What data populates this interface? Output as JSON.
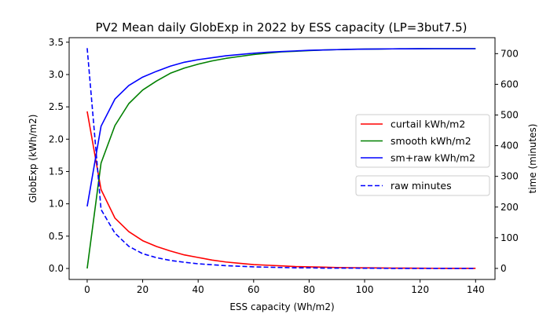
{
  "chart_data": {
    "type": "line",
    "title": "PV2 Mean daily GlobExp in 2022 by ESS capacity (LP=3but7.5)",
    "xlabel": "ESS capacity (Wh/m2)",
    "ylabel": "GlobExp (kWh/m2)",
    "y2label": "time (minutes)",
    "xlim": [
      -6.5,
      147
    ],
    "ylim": [
      -0.17,
      3.57
    ],
    "y2lim": [
      -36,
      752
    ],
    "xticks": [
      0,
      20,
      40,
      60,
      80,
      100,
      120,
      140
    ],
    "yticks": [
      0.0,
      0.5,
      1.0,
      1.5,
      2.0,
      2.5,
      3.0,
      3.5
    ],
    "ytick_labels": [
      "0.0",
      "0.5",
      "1.0",
      "1.5",
      "2.0",
      "2.5",
      "3.0",
      "3.5"
    ],
    "y2ticks": [
      0,
      100,
      200,
      300,
      400,
      500,
      600,
      700
    ],
    "x": [
      0,
      5,
      10,
      15,
      20,
      25,
      30,
      35,
      40,
      45,
      50,
      55,
      60,
      65,
      70,
      75,
      80,
      85,
      90,
      95,
      100,
      105,
      110,
      115,
      120,
      125,
      130,
      135,
      140
    ],
    "series": [
      {
        "name": "curtail kWh/m2",
        "axis": "left",
        "color": "#ff0000",
        "dash": "solid",
        "values": [
          2.43,
          1.22,
          0.78,
          0.57,
          0.43,
          0.34,
          0.27,
          0.21,
          0.17,
          0.13,
          0.1,
          0.08,
          0.06,
          0.05,
          0.04,
          0.03,
          0.025,
          0.02,
          0.015,
          0.012,
          0.01,
          0.008,
          0.006,
          0.005,
          0.004,
          0.003,
          0.002,
          0.002,
          0.002
        ]
      },
      {
        "name": "smooth kWh/m2",
        "axis": "left",
        "color": "#008000",
        "dash": "solid",
        "values": [
          0.0,
          1.63,
          2.21,
          2.55,
          2.76,
          2.9,
          3.02,
          3.1,
          3.16,
          3.21,
          3.25,
          3.28,
          3.31,
          3.33,
          3.35,
          3.36,
          3.37,
          3.38,
          3.385,
          3.39,
          3.393,
          3.395,
          3.397,
          3.398,
          3.399,
          3.4,
          3.4,
          3.4,
          3.4
        ]
      },
      {
        "name": "sm+raw kWh/m2",
        "axis": "left",
        "color": "#0000ff",
        "dash": "solid",
        "values": [
          0.96,
          2.2,
          2.62,
          2.83,
          2.96,
          3.05,
          3.13,
          3.19,
          3.23,
          3.26,
          3.29,
          3.31,
          3.33,
          3.345,
          3.355,
          3.365,
          3.375,
          3.38,
          3.385,
          3.39,
          3.393,
          3.395,
          3.397,
          3.398,
          3.399,
          3.4,
          3.4,
          3.4,
          3.4
        ]
      },
      {
        "name": "raw minutes",
        "axis": "right",
        "color": "#0000ff",
        "dash": "dashed",
        "values": [
          718,
          192,
          115,
          72,
          48,
          35,
          26,
          20,
          15,
          12,
          9,
          7,
          5,
          4,
          3,
          2,
          2,
          1,
          1,
          1,
          0.5,
          0.5,
          0,
          0,
          0,
          0,
          0,
          0,
          0
        ]
      }
    ],
    "legend": [
      {
        "group": "left",
        "placement": "center-right",
        "entries": [
          "curtail kWh/m2",
          "smooth kWh/m2",
          "sm+raw kWh/m2"
        ]
      },
      {
        "group": "right",
        "placement": "center-right",
        "entries": [
          "raw minutes"
        ]
      }
    ],
    "grid": false
  }
}
